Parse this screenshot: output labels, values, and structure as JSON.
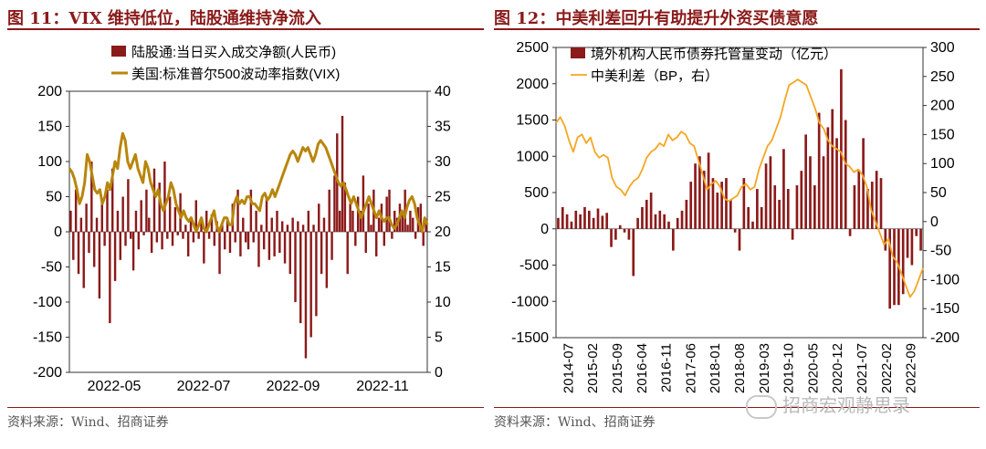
{
  "left_panel": {
    "title": "图 11：VIX 维持低位，陆股通维持净流入",
    "source": "资料来源：Wind、招商证券"
  },
  "right_panel": {
    "title": "图 12：中美利差回升有助提升外资买债意愿",
    "source": "资料来源：Wind、招商证券"
  },
  "watermark": {
    "text": "招商宏观静思录",
    "icon": "wechat-icon"
  },
  "colors": {
    "bar": "#8b1a1a",
    "vix_line": "#b8860b",
    "spread_line": "#f5a623",
    "title": "#8b1a1a"
  },
  "chart_data": [
    {
      "id": "fig11",
      "type": "bar+line",
      "title": "VIX 维持低位，陆股通维持净流入",
      "x_tick_labels": [
        "2022-05",
        "2022-07",
        "2022-09",
        "2022-11"
      ],
      "y_left": {
        "ylim": [
          -200,
          200
        ],
        "ticks": [
          -200,
          -150,
          -100,
          -50,
          0,
          50,
          100,
          150,
          200
        ]
      },
      "y_right": {
        "ylim": [
          0,
          40
        ],
        "ticks": [
          0,
          5,
          10,
          15,
          20,
          25,
          30,
          35,
          40
        ]
      },
      "legend": {
        "placement": "top-center",
        "bar_label": "陆股通:当日买入成交净额(人民币)",
        "line_label": "美国:标准普尔500波动率指数(VIX)"
      },
      "series": [
        {
          "name": "陆股通:当日买入成交净额(人民币)",
          "type": "bar",
          "axis": "left",
          "values": [
            30,
            -40,
            60,
            -60,
            20,
            -80,
            40,
            -30,
            100,
            -50,
            20,
            -95,
            40,
            -20,
            60,
            -130,
            90,
            -70,
            30,
            -40,
            50,
            -20,
            75,
            -10,
            -55,
            30,
            -25,
            45,
            -5,
            60,
            20,
            -30,
            90,
            -15,
            70,
            -25,
            100,
            -10,
            50,
            -20,
            35,
            -5,
            55,
            -10,
            10,
            -35,
            20,
            -15,
            45,
            -10,
            15,
            -45,
            30,
            -10,
            25,
            -20,
            15,
            -60,
            10,
            -25,
            20,
            -30,
            40,
            -15,
            60,
            -35,
            20,
            -15,
            -25,
            60,
            -15,
            30,
            -50,
            10,
            -25,
            50,
            -40,
            20,
            -35,
            30,
            -30,
            15,
            -45,
            10,
            -60,
            20,
            -100,
            15,
            -130,
            10,
            -180,
            30,
            -150,
            10,
            -120,
            40,
            -60,
            20,
            -80,
            60,
            -40,
            80,
            140,
            30,
            165,
            70,
            -60,
            40,
            30,
            -20,
            50,
            30,
            80,
            -30,
            40,
            10,
            60,
            -35,
            20,
            40,
            -20,
            50,
            60,
            -10,
            30,
            20,
            40,
            25,
            60,
            10,
            30,
            20,
            -10,
            35,
            40,
            -20,
            15
          ]
        },
        {
          "name": "美国:标准普尔500波动率指数(VIX)",
          "type": "line",
          "axis": "right",
          "values": [
            29,
            28.5,
            27.5,
            26,
            24,
            25,
            27,
            31,
            30,
            28,
            26,
            25.5,
            26,
            24,
            25,
            27,
            26,
            28,
            30,
            29,
            32,
            34,
            33,
            30,
            29,
            30,
            31,
            29,
            28,
            27,
            30,
            29,
            27,
            26,
            25,
            26,
            24,
            23,
            24,
            25,
            27,
            26,
            24,
            23,
            22,
            23,
            22,
            21.5,
            22,
            21,
            20,
            21,
            22,
            20.5,
            20,
            21,
            22,
            23,
            21,
            20,
            21,
            22,
            22,
            21,
            21,
            24,
            25,
            24,
            24.5,
            24,
            25,
            25,
            24,
            24,
            23.5,
            23,
            25,
            25.5,
            24.5,
            25,
            26,
            25,
            26,
            27,
            28,
            29,
            30,
            31,
            31.5,
            31,
            30,
            31,
            32,
            31.5,
            32,
            31,
            30,
            31,
            32.5,
            33,
            32.5,
            32,
            31,
            30,
            29,
            28,
            27,
            26.5,
            27,
            26,
            25,
            24,
            25,
            24,
            23,
            22,
            23,
            24,
            25,
            24,
            23,
            22,
            23,
            22,
            21.5,
            22,
            22,
            21,
            20.5,
            21,
            22,
            23,
            22,
            23.5,
            24.5,
            25,
            24,
            22,
            21,
            20,
            22,
            21
          ]
        }
      ]
    },
    {
      "id": "fig12",
      "type": "bar+line",
      "title": "中美利差回升有助提升外资买债意愿",
      "x_tick_labels": [
        "2014-07",
        "2015-02",
        "2015-09",
        "2016-04",
        "2016-11",
        "2017-06",
        "2018-01",
        "2018-08",
        "2019-03",
        "2019-10",
        "2020-05",
        "2020-12",
        "2021-07",
        "2022-02",
        "2022-09"
      ],
      "y_left": {
        "ylim": [
          -1500,
          2500
        ],
        "ticks": [
          -1500,
          -1000,
          -500,
          0,
          500,
          1000,
          1500,
          2000,
          2500
        ]
      },
      "y_right": {
        "ylim": [
          -200,
          300
        ],
        "ticks": [
          -200,
          -150,
          -100,
          -50,
          0,
          50,
          100,
          150,
          200,
          250,
          300
        ]
      },
      "legend": {
        "placement": "top-left",
        "bar_label": "境外机构人民币债券托管量变动（亿元）",
        "line_label": "中美利差（BP，右）"
      },
      "series": [
        {
          "name": "境外机构人民币债券托管量变动（亿元）",
          "type": "bar",
          "axis": "left",
          "values": [
            150,
            300,
            200,
            100,
            250,
            200,
            300,
            250,
            150,
            280,
            180,
            220,
            -250,
            -150,
            50,
            -50,
            -150,
            -650,
            150,
            300,
            400,
            500,
            200,
            250,
            200,
            100,
            -300,
            150,
            250,
            400,
            650,
            900,
            1000,
            800,
            1050,
            700,
            500,
            650,
            700,
            400,
            -50,
            -300,
            700,
            300,
            100,
            550,
            300,
            900,
            1000,
            600,
            400,
            1100,
            550,
            -150,
            600,
            800,
            1300,
            1000,
            600,
            1600,
            1000,
            1400,
            1650,
            1250,
            2200,
            1500,
            -100,
            600,
            800,
            1250,
            550,
            650,
            800,
            700,
            -300,
            -1100,
            -1050,
            -1050,
            -900,
            -400,
            -500,
            -100,
            -300
          ]
        },
        {
          "name": "中美利差（BP，右）",
          "type": "line",
          "axis": "right",
          "values": [
            170,
            180,
            165,
            140,
            120,
            145,
            150,
            135,
            145,
            120,
            110,
            115,
            110,
            75,
            60,
            55,
            45,
            60,
            70,
            75,
            90,
            110,
            120,
            125,
            135,
            130,
            150,
            140,
            145,
            155,
            150,
            135,
            130,
            105,
            80,
            55,
            65,
            70,
            60,
            40,
            35,
            40,
            45,
            60,
            65,
            55,
            60,
            90,
            110,
            130,
            140,
            160,
            180,
            210,
            235,
            240,
            245,
            240,
            235,
            215,
            195,
            170,
            160,
            140,
            130,
            125,
            120,
            100,
            95,
            85,
            90,
            80,
            60,
            20,
            0,
            -20,
            -40,
            -30,
            -60,
            -70,
            -90,
            -110,
            -130,
            -120,
            -100,
            -80
          ]
        }
      ]
    }
  ]
}
